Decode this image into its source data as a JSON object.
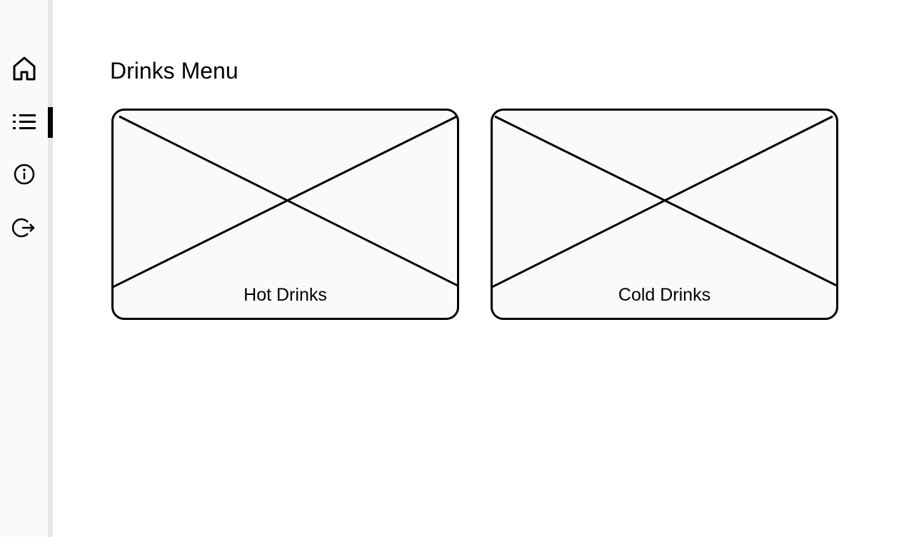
{
  "sidebar": {
    "items": [
      {
        "name": "home",
        "icon": "home-icon",
        "active": false
      },
      {
        "name": "menu",
        "icon": "list-icon",
        "active": true
      },
      {
        "name": "info",
        "icon": "info-icon",
        "active": false
      },
      {
        "name": "logout",
        "icon": "logout-icon",
        "active": false
      }
    ]
  },
  "main": {
    "title": "Drinks Menu",
    "cards": [
      {
        "label": "Hot Drinks",
        "image": "image-placeholder"
      },
      {
        "label": "Cold Drinks",
        "image": "image-placeholder"
      }
    ]
  },
  "colors": {
    "sidebar_bg": "#fafafa",
    "sidebar_border": "#e6e6e6",
    "active_indicator": "#000000",
    "card_bg": "#fafafa",
    "stroke": "#000000"
  }
}
